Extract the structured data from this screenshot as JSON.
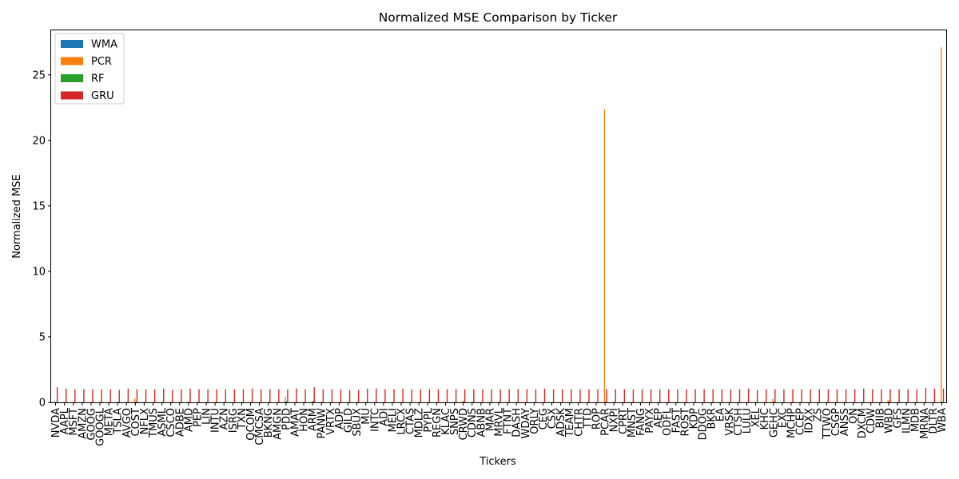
{
  "chart_data": {
    "type": "bar",
    "title": "Normalized MSE Comparison by Ticker",
    "xlabel": "Tickers",
    "ylabel": "Normalized MSE",
    "ylim": [
      0,
      28.4
    ],
    "yticks": [
      0,
      5,
      10,
      15,
      20,
      25
    ],
    "legend_position": "top-left",
    "grid": false,
    "categories": [
      "NVDA",
      "AAPL",
      "MSFT",
      "AMZN",
      "GOOG",
      "GOOGL",
      "META",
      "TSLA",
      "AVGO",
      "COST",
      "NFLX",
      "TMUS",
      "ASML",
      "CSCO",
      "ADBE",
      "AMD",
      "PEP",
      "LIN",
      "INTU",
      "AZN",
      "ISRG",
      "TXN",
      "QCOM",
      "CMCSA",
      "BKNG",
      "AMGN",
      "PDD",
      "AMAT",
      "HON",
      "ARM",
      "PANW",
      "VRTX",
      "ADP",
      "GILD",
      "SBUX",
      "MU",
      "INTC",
      "ADI",
      "MELI",
      "LRCX",
      "CTAS",
      "MDLZ",
      "PYPL",
      "REGN",
      "KLAC",
      "SNPS",
      "CRWD",
      "CDNS",
      "ABNB",
      "MAR",
      "MRVL",
      "FTNT",
      "DASH",
      "WDAY",
      "ORLY",
      "CEG",
      "CSX",
      "ADSK",
      "TEAM",
      "CHTR",
      "TTD",
      "ROP",
      "PCAR",
      "NXPI",
      "CPRT",
      "MNST",
      "FANG",
      "PAYX",
      "AEP",
      "ODFL",
      "FAST",
      "ROST",
      "KDP",
      "DDOG",
      "BKR",
      "EA",
      "VRSK",
      "CTSH",
      "LULU",
      "XEL",
      "KHC",
      "GEHC",
      "EXC",
      "MCHP",
      "CCEP",
      "IDXX",
      "ZS",
      "TTWO",
      "CSGP",
      "ANSS",
      "ON",
      "DXCM",
      "CDW",
      "BIIB",
      "WBD",
      "GFS",
      "ILMN",
      "MDB",
      "MRNA",
      "DLTR",
      "WBA"
    ],
    "series": [
      {
        "name": "WMA",
        "color": "#1f77b4",
        "values": [
          0.02,
          0.01,
          0.01,
          0.01,
          0.01,
          0.01,
          0.01,
          0.02,
          0.02,
          0.01,
          0.01,
          0.01,
          0.01,
          0.01,
          0.01,
          0.02,
          0.01,
          0.01,
          0.01,
          0.01,
          0.01,
          0.01,
          0.01,
          0.01,
          0.01,
          0.01,
          0.02,
          0.01,
          0.01,
          0.02,
          0.01,
          0.01,
          0.01,
          0.01,
          0.01,
          0.02,
          0.01,
          0.01,
          0.01,
          0.01,
          0.01,
          0.01,
          0.01,
          0.01,
          0.01,
          0.01,
          0.02,
          0.01,
          0.01,
          0.01,
          0.01,
          0.01,
          0.01,
          0.01,
          0.01,
          0.01,
          0.01,
          0.01,
          0.01,
          0.01,
          0.01,
          0.01,
          0.01,
          0.01,
          0.01,
          0.01,
          0.01,
          0.01,
          0.01,
          0.01,
          0.01,
          0.01,
          0.01,
          0.01,
          0.01,
          0.01,
          0.01,
          0.01,
          0.01,
          0.01,
          0.01,
          0.01,
          0.01,
          0.01,
          0.01,
          0.01,
          0.01,
          0.01,
          0.01,
          0.01,
          0.01,
          0.01,
          0.01,
          0.01,
          0.01,
          0.01,
          0.01,
          0.01,
          0.01,
          0.01,
          0.01
        ]
      },
      {
        "name": "PCR",
        "color": "#ff7f0e",
        "values": [
          0.05,
          0.02,
          0.02,
          0.02,
          0.02,
          0.02,
          0.02,
          0.03,
          0.03,
          0.3,
          0.02,
          0.03,
          0.02,
          0.03,
          0.03,
          0.03,
          0.02,
          0.02,
          0.02,
          0.02,
          0.02,
          0.02,
          0.02,
          0.02,
          0.03,
          0.02,
          0.45,
          0.03,
          0.02,
          0.05,
          0.03,
          0.02,
          0.02,
          0.02,
          0.02,
          0.03,
          0.03,
          0.02,
          0.02,
          0.03,
          0.02,
          0.02,
          0.02,
          0.02,
          0.02,
          0.02,
          0.1,
          0.02,
          0.02,
          0.02,
          0.02,
          0.02,
          0.03,
          0.02,
          0.02,
          0.03,
          0.02,
          0.02,
          0.02,
          0.02,
          0.02,
          0.02,
          22.35,
          0.02,
          0.02,
          0.02,
          0.02,
          0.02,
          0.02,
          0.02,
          0.02,
          0.02,
          0.02,
          0.02,
          0.02,
          0.02,
          0.02,
          0.02,
          0.02,
          0.02,
          0.02,
          0.25,
          0.02,
          0.02,
          0.02,
          0.02,
          0.02,
          0.02,
          0.02,
          0.02,
          0.02,
          0.02,
          0.02,
          0.02,
          0.2,
          0.02,
          0.02,
          0.02,
          0.02,
          0.02,
          27.1
        ]
      },
      {
        "name": "RF",
        "color": "#2ca02c",
        "values": [
          0.03,
          0.02,
          0.02,
          0.02,
          0.02,
          0.02,
          0.02,
          0.03,
          0.03,
          0.08,
          0.02,
          0.02,
          0.02,
          0.02,
          0.02,
          0.02,
          0.02,
          0.02,
          0.02,
          0.02,
          0.02,
          0.02,
          0.02,
          0.02,
          0.02,
          0.02,
          0.1,
          0.02,
          0.02,
          0.12,
          0.02,
          0.02,
          0.02,
          0.02,
          0.02,
          0.02,
          0.02,
          0.02,
          0.02,
          0.02,
          0.02,
          0.02,
          0.02,
          0.02,
          0.02,
          0.02,
          0.1,
          0.02,
          0.02,
          0.02,
          0.02,
          0.02,
          0.02,
          0.02,
          0.02,
          0.02,
          0.02,
          0.02,
          0.02,
          0.02,
          0.02,
          0.02,
          0.05,
          0.02,
          0.02,
          0.02,
          0.02,
          0.02,
          0.02,
          0.02,
          0.02,
          0.02,
          0.02,
          0.02,
          0.02,
          0.02,
          0.02,
          0.02,
          0.02,
          0.02,
          0.02,
          0.08,
          0.02,
          0.02,
          0.02,
          0.02,
          0.02,
          0.02,
          0.02,
          0.02,
          0.02,
          0.02,
          0.02,
          0.02,
          0.08,
          0.02,
          0.02,
          0.02,
          0.02,
          0.02,
          0.05
        ]
      },
      {
        "name": "GRU",
        "color": "#d62728",
        "values": [
          1.15,
          1.05,
          1.0,
          1.0,
          1.0,
          1.0,
          1.0,
          0.95,
          1.05,
          1.0,
          1.0,
          1.0,
          1.05,
          0.95,
          1.0,
          1.05,
          1.0,
          1.0,
          1.0,
          1.0,
          1.0,
          1.0,
          1.05,
          1.0,
          1.0,
          1.0,
          1.0,
          1.05,
          1.0,
          1.15,
          1.0,
          1.0,
          1.0,
          0.95,
          0.95,
          1.05,
          1.05,
          1.0,
          1.0,
          1.05,
          1.0,
          1.0,
          1.0,
          1.0,
          1.0,
          1.0,
          1.0,
          1.0,
          1.0,
          1.0,
          1.0,
          1.0,
          1.0,
          1.0,
          1.0,
          1.05,
          1.0,
          1.0,
          1.0,
          1.0,
          1.0,
          1.0,
          1.0,
          1.0,
          1.0,
          1.0,
          1.0,
          1.0,
          1.0,
          1.0,
          1.0,
          1.0,
          1.0,
          1.0,
          1.0,
          1.0,
          1.0,
          1.0,
          1.05,
          0.95,
          1.0,
          1.0,
          1.0,
          1.0,
          1.0,
          1.0,
          1.0,
          1.0,
          1.0,
          1.0,
          1.0,
          1.05,
          1.0,
          1.0,
          1.0,
          1.0,
          1.0,
          1.0,
          1.1,
          1.05,
          1.05
        ]
      }
    ]
  }
}
